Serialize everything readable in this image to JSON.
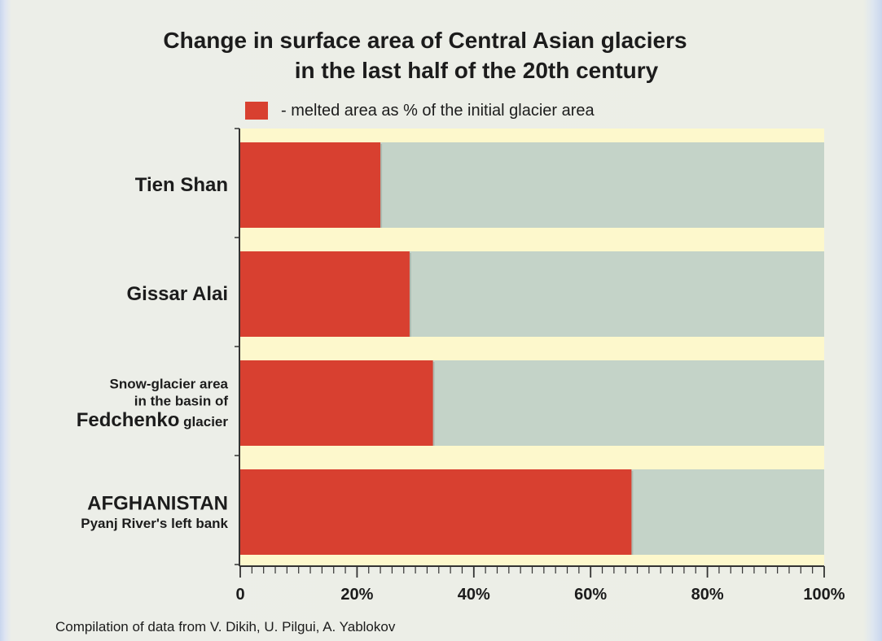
{
  "chart_data": {
    "type": "bar",
    "orientation": "horizontal",
    "stacked_to_100": true,
    "title": "Change in surface area of Central Asian glaciers in the last half of the 20th century",
    "title_lines": [
      "Change in surface area of Central Asian glaciers",
      "in the last half of the 20th century"
    ],
    "legend": {
      "label": "- melted area as % of the initial glacier area",
      "placement": "top"
    },
    "categories": [
      "Tien Shan",
      "Gissar Alai",
      "Snow-glacier area in the basin of Fedchenko glacier",
      "AFGHANISTAN Pyanj River's left bank"
    ],
    "category_labels": [
      [
        {
          "text": "Tien Shan",
          "size": "large"
        }
      ],
      [
        {
          "text": "Gissar Alai",
          "size": "large"
        }
      ],
      [
        {
          "text": "Snow-glacier area",
          "size": "small"
        },
        {
          "text": "in the basin of",
          "size": "small"
        },
        {
          "parts": [
            {
              "text": "Fedchenko",
              "size": "large"
            },
            {
              "text": " glacier",
              "size": "small"
            }
          ]
        }
      ],
      [
        {
          "text": "AFGHANISTAN",
          "size": "large"
        },
        {
          "text": "Pyanj River's left bank",
          "size": "small"
        }
      ]
    ],
    "values": [
      24,
      29,
      33,
      67
    ],
    "xlim": [
      0,
      100
    ],
    "x_ticks": [
      {
        "value": 0,
        "label": "0"
      },
      {
        "value": 20,
        "label": "20%"
      },
      {
        "value": 40,
        "label": "40%"
      },
      {
        "value": 60,
        "label": "60%"
      },
      {
        "value": 80,
        "label": "80%"
      },
      {
        "value": 100,
        "label": "100%"
      }
    ],
    "minor_tick_step": 2,
    "grid": false,
    "source_note": "Compilation of data from V. Dikih, U. Pilgui, A. Yablokov",
    "colors": {
      "melted": "#d84030",
      "remaining": "#c4d3c8",
      "plot_background": "#fdf8cc",
      "text": "#1c1c1c",
      "axis": "#333333"
    }
  }
}
